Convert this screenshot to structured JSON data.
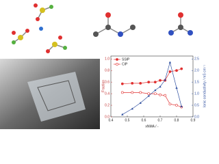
{
  "chart_data": {
    "type": "line",
    "x": [
      0.47,
      0.53,
      0.58,
      0.63,
      0.67,
      0.7,
      0.73,
      0.76,
      0.8,
      0.83
    ],
    "series": [
      {
        "name": "SSIP",
        "color": "#e03030",
        "marker": "filled",
        "values": [
          0.57,
          0.58,
          0.58,
          0.6,
          0.6,
          0.63,
          0.63,
          0.78,
          0.8,
          0.83
        ]
      },
      {
        "name": "CIP",
        "color": "#e03030",
        "marker": "open",
        "values": [
          0.42,
          0.42,
          0.42,
          0.4,
          0.4,
          0.38,
          0.37,
          0.22,
          0.2,
          0.17
        ]
      },
      {
        "color": "#3050a0",
        "marker": "triangle",
        "axis": "y2",
        "values": [
          0.1,
          0.35,
          0.6,
          0.9,
          1.15,
          1.3,
          1.6,
          2.35,
          1.25,
          0.45
        ]
      }
    ],
    "xlabel": "xNMA / -",
    "ylabel": "Fraction",
    "y2label": "Ionic conductivity / mS cm⁻¹",
    "xlim": [
      0.4,
      0.9
    ],
    "xticks": [
      0.4,
      0.5,
      0.6,
      0.7,
      0.8,
      0.9
    ],
    "ylim": [
      0,
      1.05
    ],
    "yticks": [
      {
        "value": 0,
        "label": "0.0"
      },
      0.2,
      0.4,
      0.6,
      0.8,
      {
        "value": 1,
        "label": "1.0"
      }
    ],
    "y2lim": [
      0,
      2.625
    ],
    "y2ticks": [
      {
        "value": 0,
        "label": "0.0"
      },
      0.5,
      {
        "value": 1,
        "label": "1.0"
      },
      1.5,
      {
        "value": 2,
        "label": "2.0"
      },
      2.5
    ],
    "legend": "upper-left"
  }
}
